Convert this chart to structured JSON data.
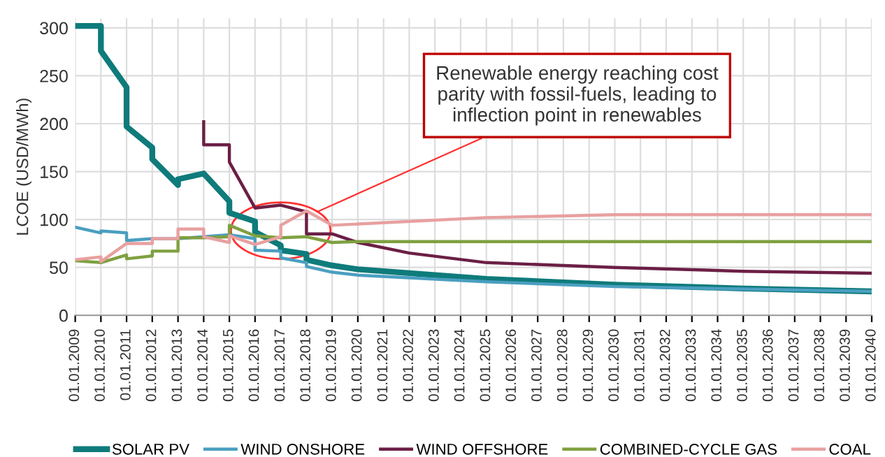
{
  "chart_data": {
    "type": "line",
    "ylabel": "LCOE (USD/MWh)",
    "xlim": [
      "2009-01-01",
      "2040-01-01"
    ],
    "xticks": [
      {
        "value": "2009-01-01",
        "label": "01.01.2009"
      },
      {
        "value": "2010-01-01",
        "label": "01.01.2010"
      },
      {
        "value": "2011-01-01",
        "label": "01.01.2011"
      },
      {
        "value": "2012-01-01",
        "label": "01.01.2012"
      },
      {
        "value": "2013-01-01",
        "label": "01.01.2013"
      },
      {
        "value": "2014-01-01",
        "label": "01.01.2014"
      },
      {
        "value": "2015-01-01",
        "label": "01.01.2015"
      },
      {
        "value": "2016-01-01",
        "label": "01.01.2016"
      },
      {
        "value": "2017-01-01",
        "label": "01.01.2017"
      },
      {
        "value": "2018-01-01",
        "label": "01.01.2018"
      },
      {
        "value": "2019-01-01",
        "label": "01.01.2019"
      },
      {
        "value": "2020-01-01",
        "label": "01.01.2020"
      },
      {
        "value": "2021-01-01",
        "label": "01.01.2021"
      },
      {
        "value": "2022-01-01",
        "label": "01.01.2022"
      },
      {
        "value": "2023-01-01",
        "label": "01.01.2023"
      },
      {
        "value": "2024-01-01",
        "label": "01.01.2024"
      },
      {
        "value": "2025-01-01",
        "label": "01.01.2025"
      },
      {
        "value": "2026-01-01",
        "label": "01.01.2026"
      },
      {
        "value": "2027-01-01",
        "label": "01.01.2027"
      },
      {
        "value": "2028-01-01",
        "label": "01.01.2028"
      },
      {
        "value": "2029-01-01",
        "label": "01.01.2029"
      },
      {
        "value": "2030-01-01",
        "label": "01.01.2030"
      },
      {
        "value": "2031-01-01",
        "label": "01.01.2031"
      },
      {
        "value": "2032-01-01",
        "label": "01.01.2032"
      },
      {
        "value": "2033-01-01",
        "label": "01.01.2033"
      },
      {
        "value": "2034-01-01",
        "label": "01.01.2034"
      },
      {
        "value": "2035-01-01",
        "label": "01.01.2035"
      },
      {
        "value": "2036-01-01",
        "label": "01.01.2036"
      },
      {
        "value": "2037-01-01",
        "label": "01.01.2037"
      },
      {
        "value": "2038-01-01",
        "label": "01.01.2038"
      },
      {
        "value": "2039-01-01",
        "label": "01.01.2039"
      },
      {
        "value": "2040-01-01",
        "label": "01.01.2040"
      }
    ],
    "ylim": [
      0,
      310
    ],
    "yticks": [
      0,
      50,
      100,
      150,
      200,
      250,
      300
    ],
    "grid": true,
    "legend": "bottom",
    "marker": "none",
    "line_style": "solid",
    "series": [
      {
        "name": "SOLAR PV",
        "color": "#0f7b7b",
        "x": [
          "2009",
          "2010",
          "2010",
          "2011",
          "2011",
          "2012",
          "2012",
          "2013",
          "2013",
          "2014",
          "2015",
          "2015",
          "2016",
          "2016",
          "2017",
          "2017",
          "2018",
          "2018",
          "2019",
          "2020",
          "2022",
          "2025",
          "2030",
          "2035",
          "2040"
        ],
        "values": [
          302,
          302,
          276,
          238,
          197,
          175,
          163,
          136,
          142,
          148,
          119,
          107,
          98,
          87,
          73,
          68,
          64,
          58,
          52,
          48,
          44,
          38,
          32,
          28,
          25
        ]
      },
      {
        "name": "WIND ONSHORE",
        "color": "#4a9fc0",
        "x": [
          "2009",
          "2010",
          "2010",
          "2011",
          "2011",
          "2012",
          "2013",
          "2014",
          "2015",
          "2016",
          "2016",
          "2017",
          "2017",
          "2018",
          "2018",
          "2019",
          "2020",
          "2025",
          "2030",
          "2040"
        ],
        "values": [
          92,
          86,
          88,
          86,
          78,
          80,
          80,
          82,
          84,
          80,
          68,
          67,
          60,
          55,
          51,
          45,
          42,
          35,
          30,
          25
        ]
      },
      {
        "name": "WIND OFFSHORE",
        "color": "#6b1f45",
        "x": [
          "2014",
          "2014",
          "2015",
          "2015",
          "2016",
          "2017",
          "2018",
          "2018",
          "2019",
          "2020",
          "2022",
          "2025",
          "2030",
          "2035",
          "2040"
        ],
        "values": [
          202,
          178,
          178,
          160,
          112,
          115,
          108,
          85,
          85,
          76,
          65,
          55,
          50,
          46,
          44
        ]
      },
      {
        "name": "COMBINED-CYCLE GAS",
        "color": "#7fa040",
        "x": [
          "2009",
          "2010",
          "2011",
          "2011",
          "2012",
          "2012",
          "2013",
          "2013",
          "2014",
          "2015",
          "2015",
          "2016",
          "2017",
          "2018",
          "2019",
          "2020",
          "2030",
          "2040"
        ],
        "values": [
          57,
          55,
          63,
          59,
          62,
          67,
          67,
          81,
          81,
          82,
          94,
          83,
          81,
          82,
          76,
          77,
          77,
          77
        ]
      },
      {
        "name": "COAL",
        "color": "#e8a0a0",
        "x": [
          "2009",
          "2010",
          "2010",
          "2011",
          "2012",
          "2012",
          "2013",
          "2013",
          "2014",
          "2014",
          "2015",
          "2015",
          "2016",
          "2017",
          "2017",
          "2018",
          "2019",
          "2025",
          "2030",
          "2040"
        ],
        "values": [
          58,
          61,
          56,
          75,
          75,
          80,
          80,
          90,
          90,
          82,
          76,
          83,
          74,
          82,
          94,
          109,
          94,
          102,
          105,
          105
        ]
      }
    ],
    "annotations": [
      {
        "text": "Renewable energy reaching cost\nparity with fossil-fuels, leading to\ninflection point in renewables",
        "x": "2018-06-01",
        "y": 108
      }
    ]
  }
}
